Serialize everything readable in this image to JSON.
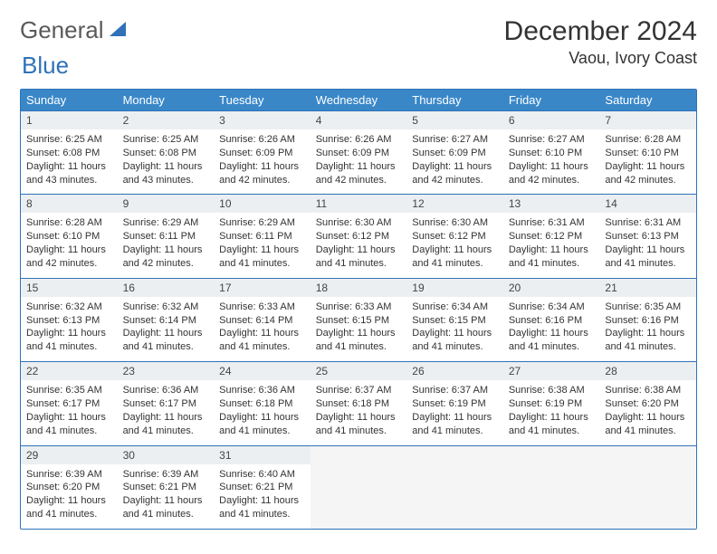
{
  "logo": {
    "text1": "General",
    "text2": "Blue"
  },
  "title": "December 2024",
  "location": "Vaou, Ivory Coast",
  "colors": {
    "header_bg": "#3a87c8",
    "header_text": "#ffffff",
    "border": "#2f72b8",
    "daynum_bg": "#eceff1",
    "empty_bg": "#f5f5f5",
    "body_text": "#333333"
  },
  "day_names": [
    "Sunday",
    "Monday",
    "Tuesday",
    "Wednesday",
    "Thursday",
    "Friday",
    "Saturday"
  ],
  "weeks": [
    {
      "nums": [
        "1",
        "2",
        "3",
        "4",
        "5",
        "6",
        "7"
      ],
      "details": [
        {
          "sr": "Sunrise: 6:25 AM",
          "ss": "Sunset: 6:08 PM",
          "dl": "Daylight: 11 hours and 43 minutes."
        },
        {
          "sr": "Sunrise: 6:25 AM",
          "ss": "Sunset: 6:08 PM",
          "dl": "Daylight: 11 hours and 43 minutes."
        },
        {
          "sr": "Sunrise: 6:26 AM",
          "ss": "Sunset: 6:09 PM",
          "dl": "Daylight: 11 hours and 42 minutes."
        },
        {
          "sr": "Sunrise: 6:26 AM",
          "ss": "Sunset: 6:09 PM",
          "dl": "Daylight: 11 hours and 42 minutes."
        },
        {
          "sr": "Sunrise: 6:27 AM",
          "ss": "Sunset: 6:09 PM",
          "dl": "Daylight: 11 hours and 42 minutes."
        },
        {
          "sr": "Sunrise: 6:27 AM",
          "ss": "Sunset: 6:10 PM",
          "dl": "Daylight: 11 hours and 42 minutes."
        },
        {
          "sr": "Sunrise: 6:28 AM",
          "ss": "Sunset: 6:10 PM",
          "dl": "Daylight: 11 hours and 42 minutes."
        }
      ]
    },
    {
      "nums": [
        "8",
        "9",
        "10",
        "11",
        "12",
        "13",
        "14"
      ],
      "details": [
        {
          "sr": "Sunrise: 6:28 AM",
          "ss": "Sunset: 6:10 PM",
          "dl": "Daylight: 11 hours and 42 minutes."
        },
        {
          "sr": "Sunrise: 6:29 AM",
          "ss": "Sunset: 6:11 PM",
          "dl": "Daylight: 11 hours and 42 minutes."
        },
        {
          "sr": "Sunrise: 6:29 AM",
          "ss": "Sunset: 6:11 PM",
          "dl": "Daylight: 11 hours and 41 minutes."
        },
        {
          "sr": "Sunrise: 6:30 AM",
          "ss": "Sunset: 6:12 PM",
          "dl": "Daylight: 11 hours and 41 minutes."
        },
        {
          "sr": "Sunrise: 6:30 AM",
          "ss": "Sunset: 6:12 PM",
          "dl": "Daylight: 11 hours and 41 minutes."
        },
        {
          "sr": "Sunrise: 6:31 AM",
          "ss": "Sunset: 6:12 PM",
          "dl": "Daylight: 11 hours and 41 minutes."
        },
        {
          "sr": "Sunrise: 6:31 AM",
          "ss": "Sunset: 6:13 PM",
          "dl": "Daylight: 11 hours and 41 minutes."
        }
      ]
    },
    {
      "nums": [
        "15",
        "16",
        "17",
        "18",
        "19",
        "20",
        "21"
      ],
      "details": [
        {
          "sr": "Sunrise: 6:32 AM",
          "ss": "Sunset: 6:13 PM",
          "dl": "Daylight: 11 hours and 41 minutes."
        },
        {
          "sr": "Sunrise: 6:32 AM",
          "ss": "Sunset: 6:14 PM",
          "dl": "Daylight: 11 hours and 41 minutes."
        },
        {
          "sr": "Sunrise: 6:33 AM",
          "ss": "Sunset: 6:14 PM",
          "dl": "Daylight: 11 hours and 41 minutes."
        },
        {
          "sr": "Sunrise: 6:33 AM",
          "ss": "Sunset: 6:15 PM",
          "dl": "Daylight: 11 hours and 41 minutes."
        },
        {
          "sr": "Sunrise: 6:34 AM",
          "ss": "Sunset: 6:15 PM",
          "dl": "Daylight: 11 hours and 41 minutes."
        },
        {
          "sr": "Sunrise: 6:34 AM",
          "ss": "Sunset: 6:16 PM",
          "dl": "Daylight: 11 hours and 41 minutes."
        },
        {
          "sr": "Sunrise: 6:35 AM",
          "ss": "Sunset: 6:16 PM",
          "dl": "Daylight: 11 hours and 41 minutes."
        }
      ]
    },
    {
      "nums": [
        "22",
        "23",
        "24",
        "25",
        "26",
        "27",
        "28"
      ],
      "details": [
        {
          "sr": "Sunrise: 6:35 AM",
          "ss": "Sunset: 6:17 PM",
          "dl": "Daylight: 11 hours and 41 minutes."
        },
        {
          "sr": "Sunrise: 6:36 AM",
          "ss": "Sunset: 6:17 PM",
          "dl": "Daylight: 11 hours and 41 minutes."
        },
        {
          "sr": "Sunrise: 6:36 AM",
          "ss": "Sunset: 6:18 PM",
          "dl": "Daylight: 11 hours and 41 minutes."
        },
        {
          "sr": "Sunrise: 6:37 AM",
          "ss": "Sunset: 6:18 PM",
          "dl": "Daylight: 11 hours and 41 minutes."
        },
        {
          "sr": "Sunrise: 6:37 AM",
          "ss": "Sunset: 6:19 PM",
          "dl": "Daylight: 11 hours and 41 minutes."
        },
        {
          "sr": "Sunrise: 6:38 AM",
          "ss": "Sunset: 6:19 PM",
          "dl": "Daylight: 11 hours and 41 minutes."
        },
        {
          "sr": "Sunrise: 6:38 AM",
          "ss": "Sunset: 6:20 PM",
          "dl": "Daylight: 11 hours and 41 minutes."
        }
      ]
    },
    {
      "nums": [
        "29",
        "30",
        "31",
        "",
        "",
        "",
        ""
      ],
      "details": [
        {
          "sr": "Sunrise: 6:39 AM",
          "ss": "Sunset: 6:20 PM",
          "dl": "Daylight: 11 hours and 41 minutes."
        },
        {
          "sr": "Sunrise: 6:39 AM",
          "ss": "Sunset: 6:21 PM",
          "dl": "Daylight: 11 hours and 41 minutes."
        },
        {
          "sr": "Sunrise: 6:40 AM",
          "ss": "Sunset: 6:21 PM",
          "dl": "Daylight: 11 hours and 41 minutes."
        },
        null,
        null,
        null,
        null
      ]
    }
  ]
}
